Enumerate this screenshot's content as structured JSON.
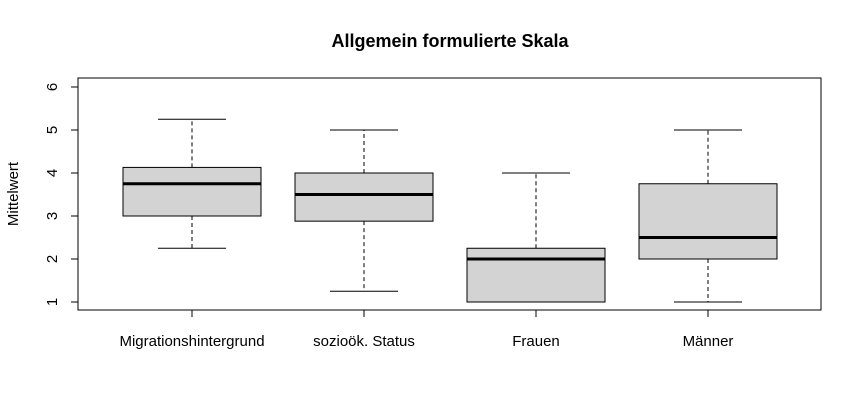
{
  "chart_data": {
    "type": "boxplot",
    "title": "Allgemein formulierte Skala",
    "xlabel": "",
    "ylabel": "Mittelwert",
    "ylim": [
      1,
      6
    ],
    "yticks": [
      "1",
      "2",
      "3",
      "4",
      "5",
      "6"
    ],
    "categories": [
      "Migrationshintergrund",
      "sozioök. Status",
      "Frauen",
      "Männer"
    ],
    "boxes": [
      {
        "min": 2.25,
        "q1": 3.0,
        "median": 3.75,
        "q3": 4.13,
        "max": 5.25
      },
      {
        "min": 1.25,
        "q1": 2.88,
        "median": 3.5,
        "q3": 4.0,
        "max": 5.0
      },
      {
        "min": 1.0,
        "q1": 1.0,
        "median": 2.0,
        "q3": 2.25,
        "max": 4.0
      },
      {
        "min": 1.0,
        "q1": 2.0,
        "median": 2.5,
        "q3": 3.75,
        "max": 5.0
      }
    ],
    "box_fill": "#d3d3d3",
    "grid": false
  }
}
